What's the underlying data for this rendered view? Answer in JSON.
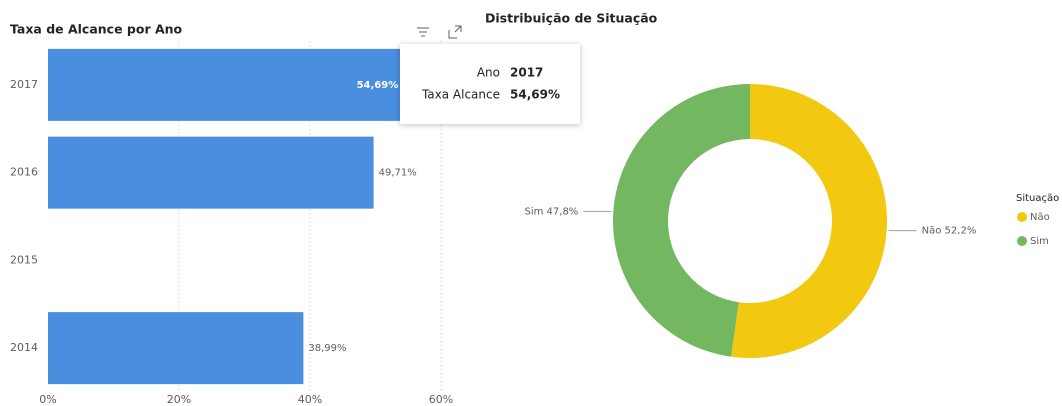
{
  "chart_data": [
    {
      "type": "hbar",
      "title": "Taxa de Alcance por Ano",
      "categories": [
        "2017",
        "2016",
        "2015",
        "2014"
      ],
      "values": [
        54.69,
        49.71,
        null,
        38.99
      ],
      "value_labels": [
        "54,69%",
        "49,71%",
        null,
        "38,99%"
      ],
      "color": "#4a8ee0",
      "xlim": [
        0,
        60
      ],
      "xticks": [
        {
          "value": 0,
          "label": "0%"
        },
        {
          "value": 20,
          "label": "20%"
        },
        {
          "value": 40,
          "label": "40%"
        },
        {
          "value": 60,
          "label": "60%"
        }
      ],
      "grid": true,
      "tooltip": [
        {
          "label": "Ano",
          "value": "2017"
        },
        {
          "label": "Taxa Alcance",
          "value": "54,69%"
        }
      ]
    },
    {
      "type": "donut",
      "title": "Distribuição de Situação",
      "legend_title": "Situação",
      "categories": [
        "Não",
        "Sim"
      ],
      "values": [
        52.2,
        47.8
      ],
      "value_labels": [
        "Não 52,2%",
        "Sim 47,8%"
      ],
      "colors": [
        "#f2c811",
        "#73b761"
      ],
      "legend": "right"
    }
  ]
}
